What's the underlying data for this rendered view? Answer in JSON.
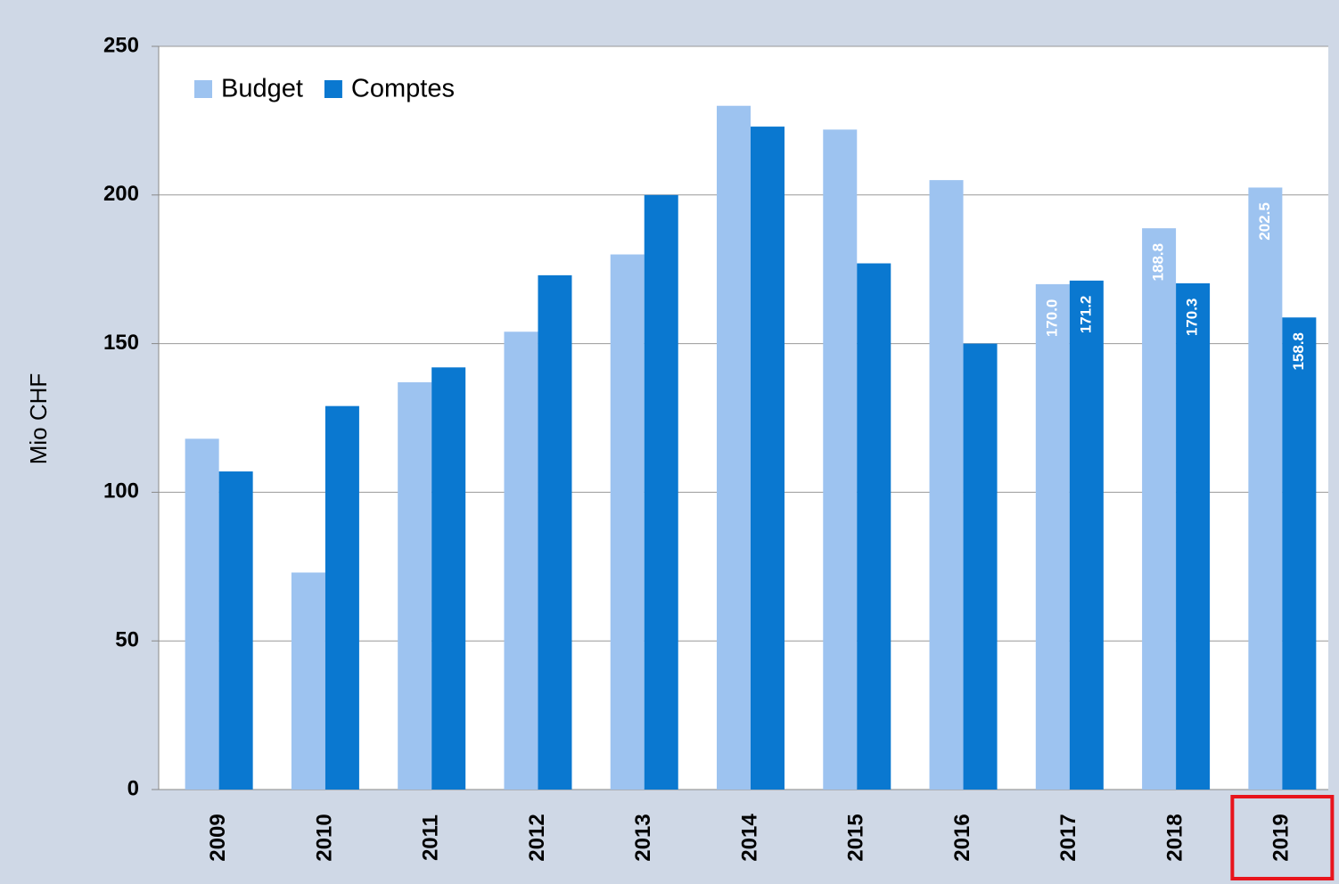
{
  "chart_data": {
    "type": "bar",
    "y_label": "Mio CHF",
    "categories": [
      "2009",
      "2010",
      "2011",
      "2012",
      "2013",
      "2014",
      "2015",
      "2016",
      "2017",
      "2018",
      "2019"
    ],
    "series": [
      {
        "name": "Budget",
        "color": "#9dc3f0",
        "values": [
          118,
          73,
          137,
          154,
          180,
          230,
          222,
          205,
          170.0,
          188.8,
          202.5
        ],
        "value_labels": [
          null,
          null,
          null,
          null,
          null,
          null,
          null,
          null,
          "170.0",
          "188.8",
          "202.5"
        ]
      },
      {
        "name": "Comptes",
        "color": "#0a78d0",
        "values": [
          107,
          129,
          142,
          173,
          200,
          223,
          177,
          150,
          171.2,
          170.3,
          158.8
        ],
        "value_labels": [
          null,
          null,
          null,
          null,
          null,
          null,
          null,
          null,
          "171.2",
          "170.3",
          "158.8"
        ]
      }
    ],
    "ylim": [
      0,
      250
    ],
    "yticks": [
      0,
      50,
      100,
      150,
      200,
      250
    ],
    "grid": true,
    "legend": "top-left"
  }
}
